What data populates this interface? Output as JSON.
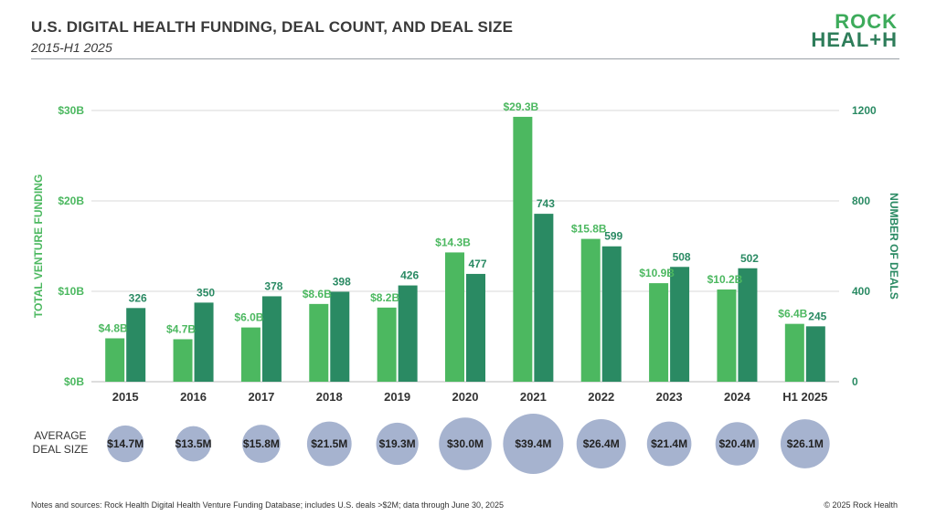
{
  "header": {
    "title": "U.S. DIGITAL HEALTH FUNDING, DEAL COUNT, AND DEAL SIZE",
    "subtitle": "2015-H1 2025",
    "logo_line1": "ROCK",
    "logo_line2": "HEAL+H"
  },
  "footer": {
    "notes": "Notes and sources: Rock Health Digital Health Venture Funding Database; includes U.S. deals >$2M; data through June 30, 2025",
    "copyright": "© 2025 Rock Health"
  },
  "colors": {
    "funding": "#4cb860",
    "deals": "#2a8a63",
    "bubble": "#a6b3cf",
    "grid": "#d9d9d9",
    "text": "#333333"
  },
  "chart_data": {
    "type": "bar",
    "categories": [
      "2015",
      "2016",
      "2017",
      "2018",
      "2019",
      "2020",
      "2021",
      "2022",
      "2023",
      "2024",
      "H1 2025"
    ],
    "left_axis": {
      "label": "TOTAL VENTURE FUNDING",
      "ticks": [
        "$0B",
        "$10B",
        "$20B",
        "$30B"
      ],
      "ylim": [
        0,
        30
      ]
    },
    "right_axis": {
      "label": "NUMBER OF DEALS",
      "ticks": [
        "0",
        "400",
        "800",
        "1200"
      ],
      "ylim": [
        0,
        1200
      ]
    },
    "series": [
      {
        "axis": "left",
        "values": [
          4.8,
          4.7,
          6.0,
          8.6,
          8.2,
          14.3,
          29.3,
          15.8,
          10.9,
          10.2,
          6.4
        ],
        "labels": [
          "$4.8B",
          "$4.7B",
          "$6.0B",
          "$8.6B",
          "$8.2B",
          "$14.3B",
          "$29.3B",
          "$15.8B",
          "$10.9B",
          "$10.2B",
          "$6.4B"
        ]
      },
      {
        "axis": "right",
        "values": [
          326,
          350,
          378,
          398,
          426,
          477,
          743,
          599,
          508,
          502,
          245
        ],
        "labels": [
          "326",
          "350",
          "378",
          "398",
          "426",
          "477",
          "743",
          "599",
          "508",
          "502",
          "245"
        ]
      }
    ],
    "average_deal_size": {
      "label_line1": "AVERAGE",
      "label_line2": "DEAL SIZE",
      "values": [
        14.7,
        13.5,
        15.8,
        21.5,
        19.3,
        30.0,
        39.4,
        26.4,
        21.4,
        20.4,
        26.1
      ],
      "labels": [
        "$14.7M",
        "$13.5M",
        "$15.8M",
        "$21.5M",
        "$19.3M",
        "$30.0M",
        "$39.4M",
        "$26.4M",
        "$21.4M",
        "$20.4M",
        "$26.1M"
      ]
    },
    "grid": true
  }
}
